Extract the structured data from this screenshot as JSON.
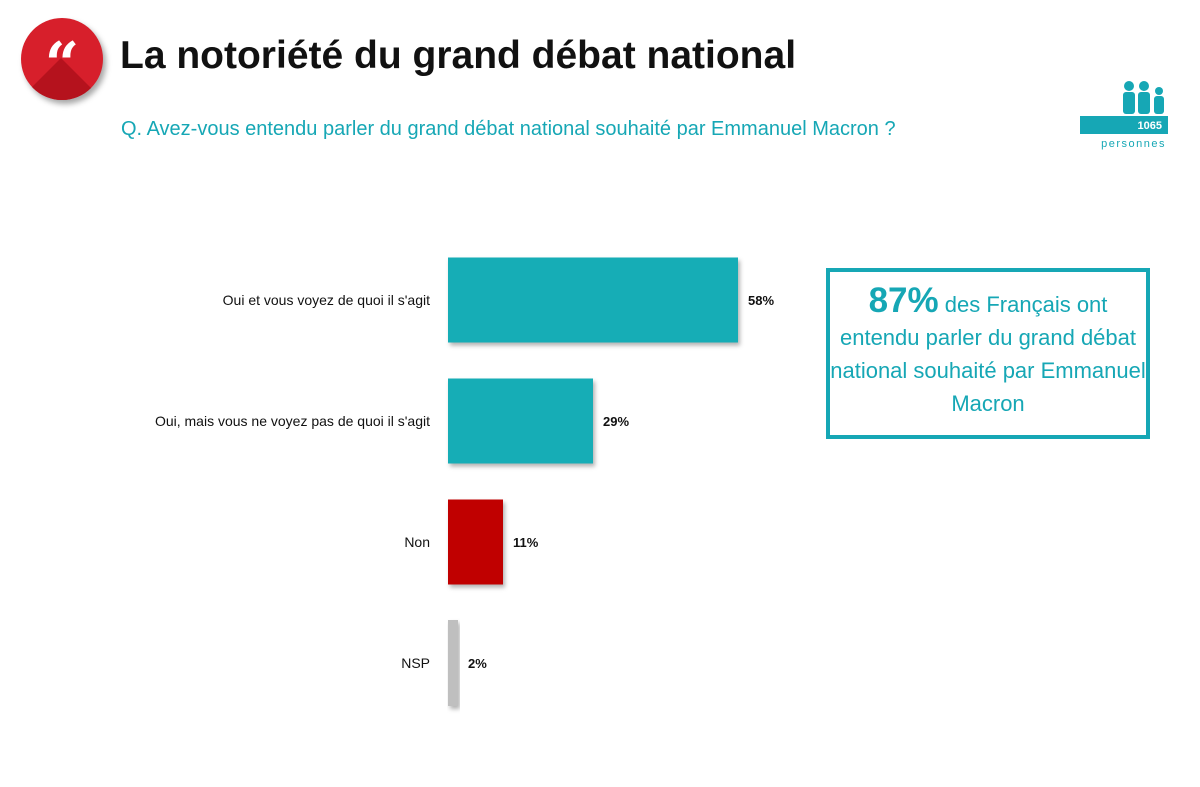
{
  "header": {
    "title": "La notoriété du grand débat national",
    "question": "Q. Avez-vous entendu parler du grand débat national souhaité par Emmanuel Macron ?",
    "logo_icon": "quote-icon"
  },
  "sample": {
    "count": "1065",
    "label": "personnes",
    "icon": "people-icon"
  },
  "callout": {
    "highlight": "87%",
    "text": "des Français ont entendu parler du grand débat national souhaité par Emmanuel Macron"
  },
  "colors": {
    "teal": "#16adb6",
    "red": "#c00000",
    "grey": "#bfbfbf"
  },
  "chart_data": {
    "type": "bar",
    "orientation": "horizontal",
    "title": "",
    "xlabel": "",
    "ylabel": "",
    "categories": [
      "Oui et vous voyez de quoi il s'agit",
      "Oui, mais vous ne voyez pas de quoi il s'agit",
      "Non",
      "NSP"
    ],
    "values": [
      58,
      29,
      11,
      2
    ],
    "value_labels": [
      "58%",
      "29%",
      "11%",
      "2%"
    ],
    "bar_colors": [
      "#16adb6",
      "#16adb6",
      "#c00000",
      "#bfbfbf"
    ],
    "xlim": [
      0,
      100
    ],
    "grid": false,
    "legend": "none"
  }
}
